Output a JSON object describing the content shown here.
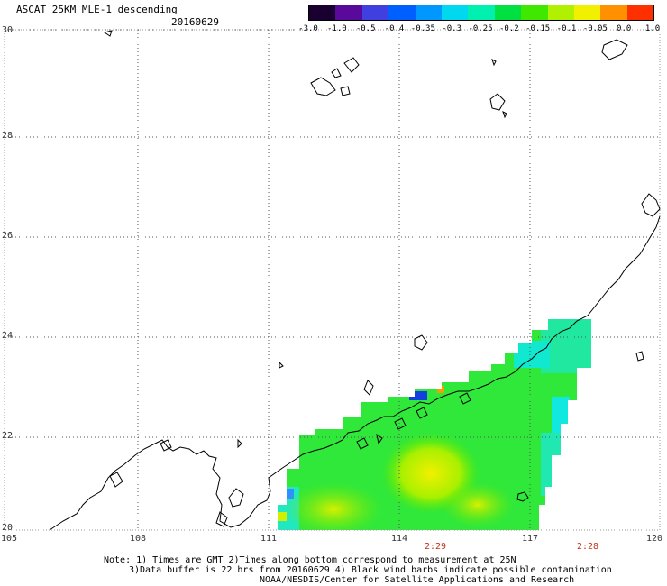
{
  "header": {
    "title": "ASCAT 25KM MLE-1 descending",
    "date": "20160629"
  },
  "colorbar": {
    "labels": [
      "-3.0",
      "-1.0",
      "-0.5",
      "-0.4",
      "-0.35",
      "-0.3",
      "-0.25",
      "-0.2",
      "-0.15",
      "-0.1",
      "-0.05",
      "0.0",
      "1.0"
    ],
    "colors": [
      "#1a0030",
      "#5a0a9a",
      "#4040e0",
      "#0060ff",
      "#0098ff",
      "#00d8f0",
      "#00f0b0",
      "#00e040",
      "#40e800",
      "#b0f000",
      "#f0f000",
      "#ff9000",
      "#ff3000"
    ]
  },
  "axes": {
    "lat_ticks": [
      "30",
      "28",
      "26",
      "24",
      "22",
      "20"
    ],
    "lon_ticks": [
      "105",
      "108",
      "111",
      "114",
      "117",
      "120"
    ],
    "lat_range": [
      20,
      30
    ],
    "lon_range": [
      105,
      120
    ],
    "grid": true
  },
  "pass_times": [
    "2:29",
    "2:28"
  ],
  "notes": {
    "line1": "Note: 1) Times are GMT 2)Times along bottom correspond to measurement at 25N",
    "line2": "3)Data buffer is 22 hrs from 20160629 4) Black wind barbs indicate possible contamination",
    "line3": "NOAA/NESDIS/Center for Satellite Applications and Research"
  }
}
